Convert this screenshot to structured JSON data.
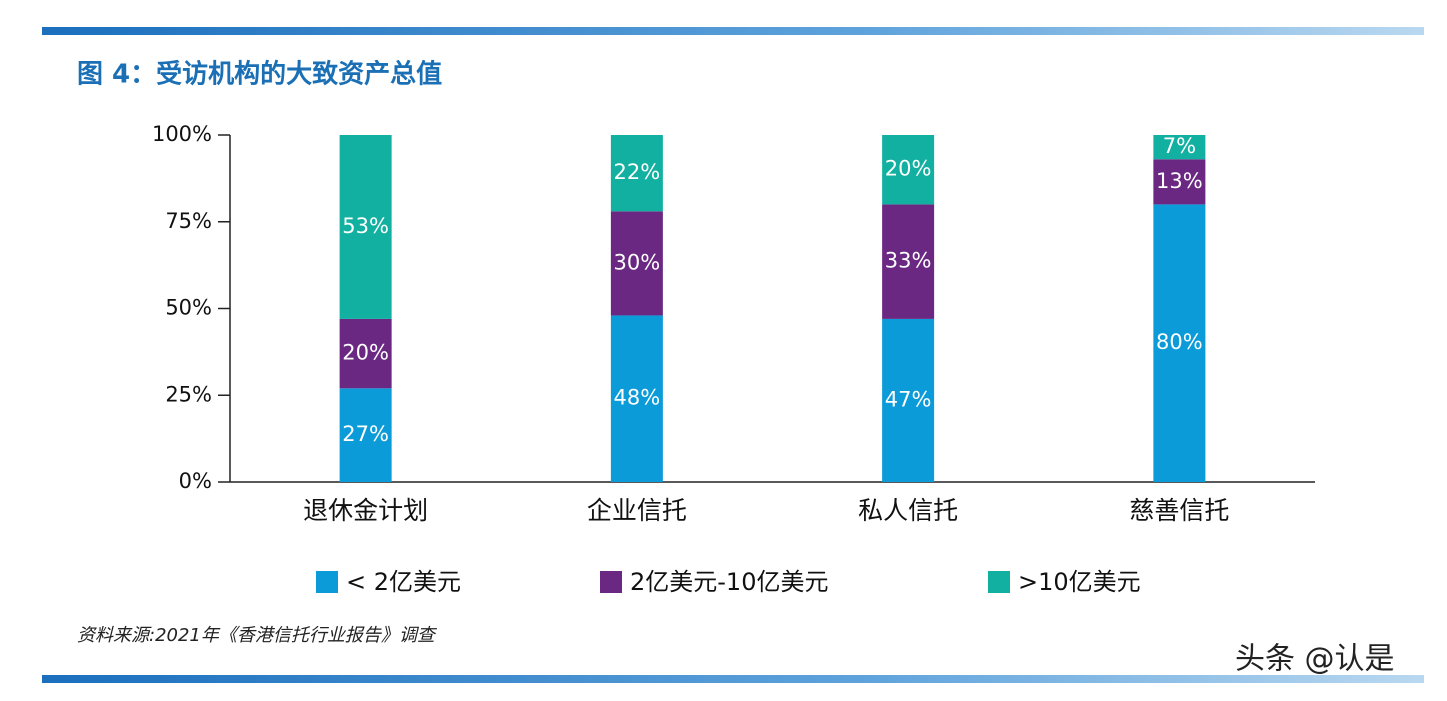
{
  "chart_data": {
    "type": "stacked_bar",
    "title": "图 4：受访机构的大致资产总值",
    "categories": [
      "退休金计划",
      "企业信托",
      "私人信托",
      "慈善信托"
    ],
    "series": [
      {
        "name": "< 2亿美元",
        "color": "#0b9bd8",
        "values": [
          27,
          48,
          47,
          80
        ],
        "value_labels": [
          "27%",
          "48%",
          "47%",
          "80%"
        ]
      },
      {
        "name": "2亿美元-10亿美元",
        "color": "#6b2882",
        "values": [
          20,
          30,
          33,
          13
        ],
        "value_labels": [
          "20%",
          "30%",
          "33%",
          "13%"
        ]
      },
      {
        "name": ">10亿美元",
        "color": "#12b0a0",
        "values": [
          53,
          22,
          20,
          7
        ],
        "value_labels": [
          "53%",
          "22%",
          "20%",
          "7%"
        ]
      }
    ],
    "ylim": [
      0,
      100
    ],
    "yticks": [
      {
        "value": 0,
        "label": "0%"
      },
      {
        "value": 25,
        "label": "25%"
      },
      {
        "value": 50,
        "label": "50%"
      },
      {
        "value": 75,
        "label": "75%"
      },
      {
        "value": 100,
        "label": "100%"
      }
    ],
    "legend": "bottom",
    "source": "资料来源:2021年《香港信托行业报告》调查",
    "watermark": "头条 @认是"
  }
}
